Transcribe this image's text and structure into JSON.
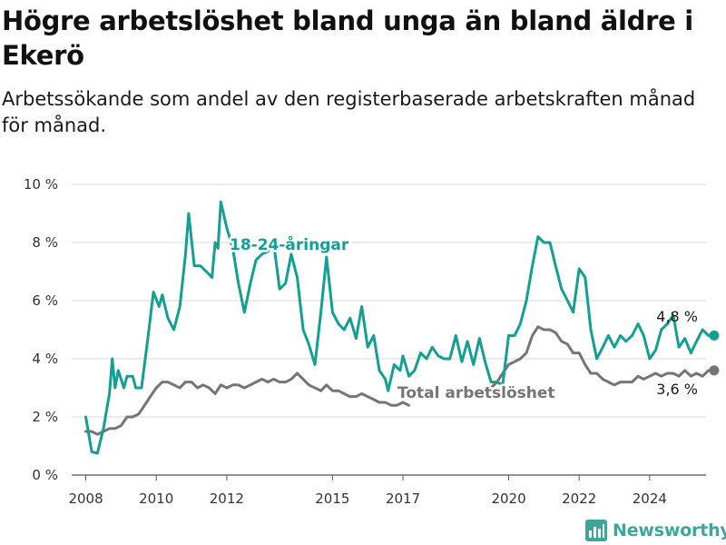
{
  "title": "Högre arbetslöshet bland unga än bland äldre i Ekerö",
  "subtitle": "Arbetssökande som andel av den registerbaserade arbetskraften månad för månad.",
  "branding": {
    "name": "Newsworthy",
    "icon": "bar-chart-logo-icon",
    "color": "#3fa69d"
  },
  "chart_data": {
    "type": "line",
    "title": "Högre arbetslöshet bland unga än bland äldre i Ekerö",
    "subtitle": "Arbetssökande som andel av den registerbaserade arbetskraften månad för månad.",
    "xlabel": "",
    "ylabel": "",
    "x_range": [
      2007.6,
      2025.6
    ],
    "ylim": [
      0,
      10
    ],
    "y_ticks": [
      0,
      2,
      4,
      6,
      8,
      10
    ],
    "y_tick_labels": [
      "0 %",
      "2 %",
      "4 %",
      "6 %",
      "8 %",
      "10 %"
    ],
    "x_ticks": [
      2008,
      2010,
      2012,
      2015,
      2017,
      2020,
      2022,
      2024
    ],
    "x_tick_labels": [
      "2008",
      "2010",
      "2012",
      "2015",
      "2017",
      "2020",
      "2022",
      "2024"
    ],
    "grid": "horizontal",
    "legend": "inline labels",
    "series": [
      {
        "name": "18-24-åringar",
        "color": "#139f93",
        "last_value_label": "4,8 %",
        "points": [
          [
            2008.0,
            2.0
          ],
          [
            2008.17,
            0.8
          ],
          [
            2008.33,
            0.75
          ],
          [
            2008.5,
            1.6
          ],
          [
            2008.67,
            2.8
          ],
          [
            2008.75,
            4.0
          ],
          [
            2008.83,
            3.0
          ],
          [
            2008.92,
            3.6
          ],
          [
            2009.08,
            3.0
          ],
          [
            2009.17,
            3.4
          ],
          [
            2009.33,
            3.4
          ],
          [
            2009.42,
            3.0
          ],
          [
            2009.58,
            3.0
          ],
          [
            2009.75,
            4.6
          ],
          [
            2009.92,
            6.3
          ],
          [
            2010.08,
            5.8
          ],
          [
            2010.17,
            6.2
          ],
          [
            2010.33,
            5.4
          ],
          [
            2010.5,
            5.0
          ],
          [
            2010.67,
            5.8
          ],
          [
            2010.83,
            7.6
          ],
          [
            2010.92,
            9.0
          ],
          [
            2011.08,
            7.2
          ],
          [
            2011.25,
            7.2
          ],
          [
            2011.42,
            7.0
          ],
          [
            2011.58,
            6.8
          ],
          [
            2011.67,
            8.0
          ],
          [
            2011.75,
            7.8
          ],
          [
            2011.83,
            9.4
          ],
          [
            2012.0,
            8.5
          ],
          [
            2012.17,
            7.8
          ],
          [
            2012.33,
            6.6
          ],
          [
            2012.5,
            5.6
          ],
          [
            2012.67,
            6.6
          ],
          [
            2012.83,
            7.4
          ],
          [
            2013.0,
            7.6
          ],
          [
            2013.17,
            7.7
          ],
          [
            2013.33,
            8.0
          ],
          [
            2013.5,
            6.4
          ],
          [
            2013.67,
            6.6
          ],
          [
            2013.83,
            7.6
          ],
          [
            2014.0,
            6.8
          ],
          [
            2014.17,
            5.0
          ],
          [
            2014.33,
            4.5
          ],
          [
            2014.5,
            3.8
          ],
          [
            2014.67,
            5.6
          ],
          [
            2014.83,
            7.5
          ],
          [
            2015.0,
            5.6
          ],
          [
            2015.17,
            5.2
          ],
          [
            2015.33,
            5.0
          ],
          [
            2015.5,
            5.4
          ],
          [
            2015.67,
            4.7
          ],
          [
            2015.83,
            5.8
          ],
          [
            2016.0,
            4.4
          ],
          [
            2016.17,
            4.8
          ],
          [
            2016.33,
            3.6
          ],
          [
            2016.5,
            3.3
          ],
          [
            2016.58,
            2.9
          ],
          [
            2016.75,
            3.8
          ],
          [
            2016.92,
            3.6
          ],
          [
            2017.0,
            4.1
          ],
          [
            2017.17,
            3.4
          ],
          [
            2017.33,
            3.6
          ],
          [
            2017.5,
            4.2
          ],
          [
            2017.67,
            4.0
          ],
          [
            2017.83,
            4.4
          ],
          [
            2018.0,
            4.1
          ],
          [
            2018.17,
            4.0
          ],
          [
            2018.33,
            4.0
          ],
          [
            2018.5,
            4.8
          ],
          [
            2018.67,
            3.9
          ],
          [
            2018.83,
            4.6
          ],
          [
            2019.0,
            3.8
          ],
          [
            2019.17,
            4.7
          ],
          [
            2019.33,
            3.9
          ],
          [
            2019.5,
            3.2
          ],
          [
            2019.67,
            3.2
          ],
          [
            2019.83,
            3.1
          ],
          [
            2020.0,
            4.8
          ],
          [
            2020.17,
            4.8
          ],
          [
            2020.33,
            5.2
          ],
          [
            2020.5,
            6.0
          ],
          [
            2020.67,
            7.2
          ],
          [
            2020.83,
            8.2
          ],
          [
            2021.0,
            8.0
          ],
          [
            2021.17,
            8.0
          ],
          [
            2021.33,
            7.2
          ],
          [
            2021.5,
            6.4
          ],
          [
            2021.67,
            6.0
          ],
          [
            2021.83,
            5.6
          ],
          [
            2022.0,
            7.1
          ],
          [
            2022.17,
            6.8
          ],
          [
            2022.33,
            5.0
          ],
          [
            2022.5,
            4.0
          ],
          [
            2022.67,
            4.4
          ],
          [
            2022.83,
            4.8
          ],
          [
            2023.0,
            4.4
          ],
          [
            2023.17,
            4.8
          ],
          [
            2023.33,
            4.6
          ],
          [
            2023.5,
            4.8
          ],
          [
            2023.67,
            5.2
          ],
          [
            2023.83,
            4.8
          ],
          [
            2024.0,
            4.0
          ],
          [
            2024.17,
            4.3
          ],
          [
            2024.33,
            5.0
          ],
          [
            2024.5,
            5.2
          ],
          [
            2024.67,
            5.5
          ],
          [
            2024.83,
            4.4
          ],
          [
            2025.0,
            4.7
          ],
          [
            2025.17,
            4.2
          ],
          [
            2025.33,
            4.6
          ],
          [
            2025.5,
            5.0
          ],
          [
            2025.67,
            4.8
          ],
          [
            2025.83,
            4.8
          ]
        ]
      },
      {
        "name": "Total arbetslöshet",
        "color": "#757575",
        "last_value_label": "3,6 %",
        "points": [
          [
            2008.0,
            1.5
          ],
          [
            2008.17,
            1.5
          ],
          [
            2008.33,
            1.4
          ],
          [
            2008.5,
            1.5
          ],
          [
            2008.67,
            1.6
          ],
          [
            2008.83,
            1.6
          ],
          [
            2009.0,
            1.7
          ],
          [
            2009.17,
            2.0
          ],
          [
            2009.33,
            2.0
          ],
          [
            2009.5,
            2.1
          ],
          [
            2009.67,
            2.4
          ],
          [
            2009.83,
            2.7
          ],
          [
            2010.0,
            3.0
          ],
          [
            2010.17,
            3.2
          ],
          [
            2010.33,
            3.2
          ],
          [
            2010.5,
            3.1
          ],
          [
            2010.67,
            3.0
          ],
          [
            2010.83,
            3.2
          ],
          [
            2011.0,
            3.2
          ],
          [
            2011.17,
            3.0
          ],
          [
            2011.33,
            3.1
          ],
          [
            2011.5,
            3.0
          ],
          [
            2011.67,
            2.8
          ],
          [
            2011.83,
            3.1
          ],
          [
            2012.0,
            3.0
          ],
          [
            2012.17,
            3.1
          ],
          [
            2012.33,
            3.1
          ],
          [
            2012.5,
            3.0
          ],
          [
            2012.67,
            3.1
          ],
          [
            2012.83,
            3.2
          ],
          [
            2013.0,
            3.3
          ],
          [
            2013.17,
            3.2
          ],
          [
            2013.33,
            3.3
          ],
          [
            2013.5,
            3.2
          ],
          [
            2013.67,
            3.2
          ],
          [
            2013.83,
            3.3
          ],
          [
            2014.0,
            3.5
          ],
          [
            2014.17,
            3.3
          ],
          [
            2014.33,
            3.1
          ],
          [
            2014.5,
            3.0
          ],
          [
            2014.67,
            2.9
          ],
          [
            2014.83,
            3.1
          ],
          [
            2015.0,
            2.9
          ],
          [
            2015.17,
            2.9
          ],
          [
            2015.33,
            2.8
          ],
          [
            2015.5,
            2.7
          ],
          [
            2015.67,
            2.7
          ],
          [
            2015.83,
            2.8
          ],
          [
            2016.0,
            2.7
          ],
          [
            2016.17,
            2.6
          ],
          [
            2016.33,
            2.5
          ],
          [
            2016.5,
            2.5
          ],
          [
            2016.67,
            2.4
          ],
          [
            2016.83,
            2.4
          ],
          [
            2017.0,
            2.5
          ],
          [
            2017.17,
            2.4
          ]
        ],
        "points_2": [
          [
            2019.5,
            3.0
          ],
          [
            2019.67,
            3.2
          ],
          [
            2019.83,
            3.5
          ],
          [
            2020.0,
            3.8
          ],
          [
            2020.17,
            3.9
          ],
          [
            2020.33,
            4.0
          ],
          [
            2020.5,
            4.2
          ],
          [
            2020.67,
            4.8
          ],
          [
            2020.83,
            5.1
          ],
          [
            2021.0,
            5.0
          ],
          [
            2021.17,
            5.0
          ],
          [
            2021.33,
            4.9
          ],
          [
            2021.5,
            4.6
          ],
          [
            2021.67,
            4.5
          ],
          [
            2021.83,
            4.2
          ],
          [
            2022.0,
            4.2
          ],
          [
            2022.17,
            3.8
          ],
          [
            2022.33,
            3.5
          ],
          [
            2022.5,
            3.5
          ],
          [
            2022.67,
            3.3
          ],
          [
            2022.83,
            3.2
          ],
          [
            2023.0,
            3.1
          ],
          [
            2023.17,
            3.2
          ],
          [
            2023.33,
            3.2
          ],
          [
            2023.5,
            3.2
          ],
          [
            2023.67,
            3.4
          ],
          [
            2023.83,
            3.3
          ],
          [
            2024.0,
            3.4
          ],
          [
            2024.17,
            3.5
          ],
          [
            2024.33,
            3.4
          ],
          [
            2024.5,
            3.5
          ],
          [
            2024.67,
            3.5
          ],
          [
            2024.83,
            3.4
          ],
          [
            2025.0,
            3.6
          ],
          [
            2025.17,
            3.4
          ],
          [
            2025.33,
            3.5
          ],
          [
            2025.5,
            3.4
          ],
          [
            2025.67,
            3.6
          ],
          [
            2025.83,
            3.6
          ]
        ]
      }
    ]
  }
}
